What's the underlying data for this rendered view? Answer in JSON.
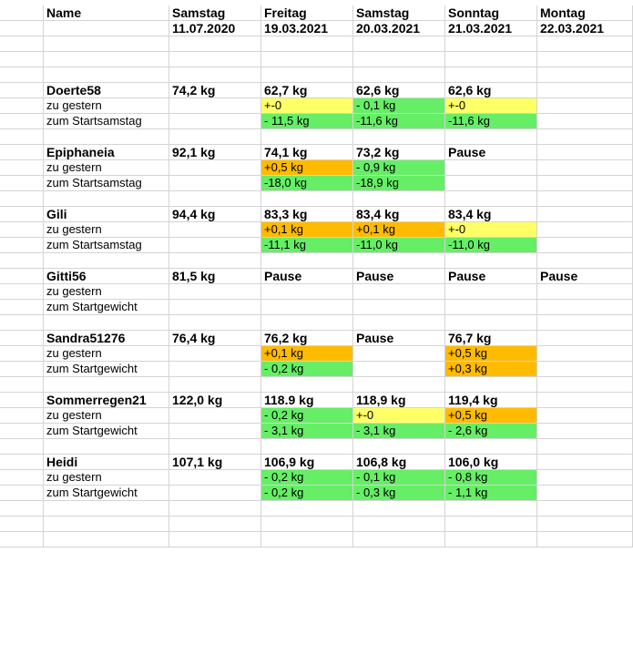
{
  "header": {
    "name": "Name",
    "days": [
      "Samstag",
      "Freitag",
      "Samstag",
      "Sonntag",
      "Montag"
    ],
    "dates": [
      "11.07.2020",
      "19.03.2021",
      "20.03.2021",
      "21.03.2021",
      "22.03.2021"
    ]
  },
  "colors": {
    "yellow": "#ffff66",
    "green": "#66ee66",
    "orange": "#ffbb00"
  },
  "people": [
    {
      "name": "Doerte58",
      "start": "74,2 kg",
      "values": [
        "62,7 kg",
        "62,6 kg",
        "62,6 kg",
        ""
      ],
      "sub1": {
        "label": "zu gestern",
        "values": [
          "+-0",
          "- 0,1 kg",
          "+-0",
          ""
        ],
        "colors": [
          "yellow",
          "green",
          "yellow",
          ""
        ]
      },
      "sub2": {
        "label": "zum Startsamstag",
        "values": [
          "- 11,5 kg",
          "-11,6 kg",
          "-11,6 kg",
          ""
        ],
        "colors": [
          "green",
          "green",
          "green",
          ""
        ]
      }
    },
    {
      "name": "Epiphaneia",
      "start": "92,1 kg",
      "values": [
        "74,1 kg",
        "73,2 kg",
        "Pause",
        ""
      ],
      "sub1": {
        "label": "zu gestern",
        "values": [
          "+0,5 kg",
          "- 0,9 kg",
          "",
          ""
        ],
        "colors": [
          "orange",
          "green",
          "",
          ""
        ]
      },
      "sub2": {
        "label": "zum Startsamstag",
        "values": [
          "-18,0 kg",
          "-18,9 kg",
          "",
          ""
        ],
        "colors": [
          "green",
          "green",
          "",
          ""
        ]
      }
    },
    {
      "name": "Gili",
      "start": "94,4 kg",
      "values": [
        "83,3 kg",
        "83,4 kg",
        "83,4 kg",
        ""
      ],
      "sub1": {
        "label": "zu gestern",
        "values": [
          "+0,1 kg",
          "+0,1 kg",
          "+-0",
          ""
        ],
        "colors": [
          "orange",
          "orange",
          "yellow",
          ""
        ]
      },
      "sub2": {
        "label": "zum Startsamstag",
        "values": [
          "-11,1 kg",
          "-11,0 kg",
          "-11,0 kg",
          ""
        ],
        "colors": [
          "green",
          "green",
          "green",
          ""
        ]
      }
    },
    {
      "name": "Gitti56",
      "start": "81,5 kg",
      "values": [
        "Pause",
        "Pause",
        "Pause",
        "Pause"
      ],
      "sub1": {
        "label": "zu gestern",
        "values": [
          "",
          "",
          "",
          ""
        ],
        "colors": [
          "",
          "",
          "",
          ""
        ]
      },
      "sub2": {
        "label": "zum Startgewicht",
        "values": [
          "",
          "",
          "",
          ""
        ],
        "colors": [
          "",
          "",
          "",
          ""
        ]
      }
    },
    {
      "name": "Sandra51276",
      "start": "76,4 kg",
      "values": [
        "76,2 kg",
        "Pause",
        "76,7 kg",
        ""
      ],
      "sub1": {
        "label": "zu gestern",
        "values": [
          "+0,1 kg",
          "",
          "+0,5 kg",
          ""
        ],
        "colors": [
          "orange",
          "",
          "orange",
          ""
        ]
      },
      "sub2": {
        "label": "zum Startgewicht",
        "values": [
          "- 0,2 kg",
          "",
          "+0,3 kg",
          ""
        ],
        "colors": [
          "green",
          "",
          "orange",
          ""
        ]
      }
    },
    {
      "name": "Sommerregen21",
      "start": "122,0 kg",
      "values": [
        "118.9 kg",
        "118,9 kg",
        "119,4 kg",
        ""
      ],
      "sub1": {
        "label": "zu gestern",
        "values": [
          "- 0,2 kg",
          "+-0",
          "+0,5 kg",
          ""
        ],
        "colors": [
          "green",
          "yellow",
          "orange",
          ""
        ]
      },
      "sub2": {
        "label": "zum Startgewicht",
        "values": [
          "- 3,1 kg",
          "- 3,1 kg",
          "- 2,6 kg",
          ""
        ],
        "colors": [
          "green",
          "green",
          "green",
          ""
        ]
      }
    },
    {
      "name": "Heidi",
      "start": "107,1 kg",
      "values": [
        "106,9 kg",
        "106,8 kg",
        "106,0 kg",
        ""
      ],
      "sub1": {
        "label": "zu gestern",
        "values": [
          "- 0,2 kg",
          "- 0,1 kg",
          "- 0,8 kg",
          ""
        ],
        "colors": [
          "green",
          "green",
          "green",
          ""
        ]
      },
      "sub2": {
        "label": "zum Startgewicht",
        "values": [
          "- 0,2 kg",
          "- 0,3 kg",
          "- 1,1 kg",
          ""
        ],
        "colors": [
          "green",
          "green",
          "green",
          ""
        ]
      }
    }
  ]
}
